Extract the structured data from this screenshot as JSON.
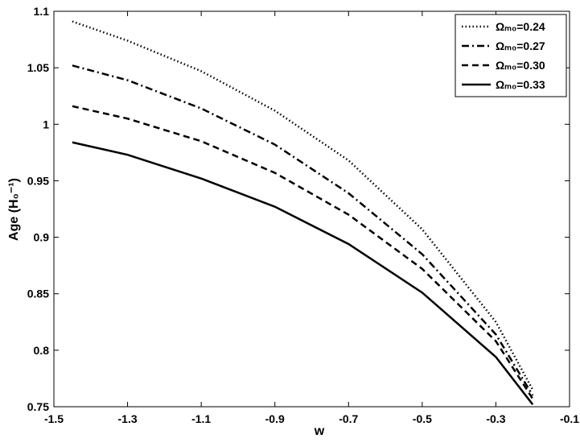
{
  "chart_data": {
    "type": "line",
    "x_label": "w",
    "y_label": "Age (H₀⁻¹)",
    "x": [
      -1.45,
      -1.3,
      -1.1,
      -0.9,
      -0.7,
      -0.5,
      -0.3,
      -0.2
    ],
    "series": [
      {
        "name": "Ωₘ₀=0.24",
        "color": "#000000",
        "dash": "1.5,3",
        "values": [
          1.091,
          1.074,
          1.047,
          1.012,
          0.968,
          0.907,
          0.825,
          0.765
        ]
      },
      {
        "name": "Ωₘ₀=0.27",
        "color": "#000000",
        "dash": "9,4,2,4",
        "values": [
          1.052,
          1.039,
          1.014,
          0.982,
          0.939,
          0.885,
          0.814,
          0.76
        ]
      },
      {
        "name": "Ωₘ₀=0.30",
        "color": "#000000",
        "dash": "8,5",
        "values": [
          1.016,
          1.005,
          0.985,
          0.957,
          0.92,
          0.872,
          0.808,
          0.757
        ]
      },
      {
        "name": "Ωₘ₀=0.33",
        "color": "#000000",
        "dash": "none",
        "values": [
          0.984,
          0.973,
          0.952,
          0.927,
          0.894,
          0.851,
          0.794,
          0.752
        ]
      }
    ],
    "xlim": [
      -1.5,
      -0.1
    ],
    "xticks": [
      -1.5,
      -1.3,
      -1.1,
      -0.9,
      -0.7,
      -0.5,
      -0.3,
      -0.1
    ],
    "ylim": [
      0.75,
      1.1
    ],
    "yticks": [
      0.75,
      0.8,
      0.85,
      0.9,
      0.95,
      1,
      1.05,
      1.1
    ],
    "grid": false,
    "legend": "upper right"
  }
}
